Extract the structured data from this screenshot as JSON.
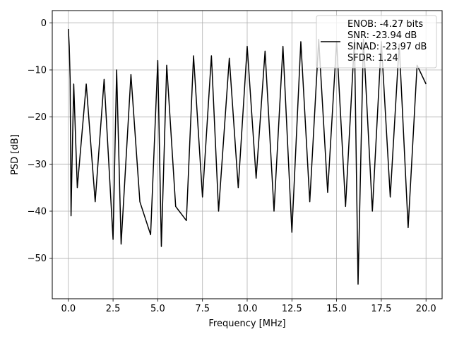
{
  "chart_data": {
    "type": "line",
    "title": "",
    "xlabel": "Frequency [MHz]",
    "ylabel": "PSD [dB]",
    "xlim": [
      -0.9,
      20.9
    ],
    "ylim": [
      -58.6,
      2.6
    ],
    "xticks": [
      0.0,
      2.5,
      5.0,
      7.5,
      10.0,
      12.5,
      15.0,
      17.5,
      20.0
    ],
    "xtick_labels": [
      "0.0",
      "2.5",
      "5.0",
      "7.5",
      "10.0",
      "12.5",
      "15.0",
      "17.5",
      "20.0"
    ],
    "yticks": [
      0,
      -10,
      -20,
      -30,
      -40,
      -50
    ],
    "ytick_labels": [
      "0",
      "−10",
      "−20",
      "−30",
      "−40",
      "−50"
    ],
    "grid": true,
    "legend_placement": "top-right",
    "series": [
      {
        "color": "#000000",
        "x": [
          0.0,
          0.05,
          0.1,
          0.15,
          0.2,
          0.3,
          0.5,
          1.0,
          1.5,
          2.0,
          2.5,
          2.7,
          2.95,
          3.5,
          4.0,
          4.6,
          5.0,
          5.2,
          5.5,
          6.0,
          6.6,
          7.0,
          7.5,
          8.0,
          8.4,
          9.0,
          9.5,
          10.0,
          10.5,
          11.0,
          11.5,
          12.0,
          12.5,
          13.0,
          13.5,
          14.0,
          14.5,
          15.0,
          15.5,
          16.0,
          16.2,
          16.5,
          17.0,
          17.5,
          18.0,
          18.5,
          19.0,
          19.5,
          20.0
        ],
        "y": [
          -1.3,
          -5.0,
          -12.0,
          -41.0,
          -31.0,
          -13.0,
          -35.0,
          -13.0,
          -38.0,
          -12.0,
          -46.0,
          -10.0,
          -47.0,
          -11.0,
          -38.0,
          -45.0,
          -8.0,
          -47.5,
          -9.0,
          -39.0,
          -42.0,
          -7.0,
          -37.0,
          -7.0,
          -40.0,
          -7.5,
          -35.0,
          -5.0,
          -33.0,
          -6.0,
          -40.0,
          -5.0,
          -44.5,
          -4.0,
          -38.0,
          -3.5,
          -36.0,
          -4.0,
          -39.0,
          -3.5,
          -55.5,
          -3.5,
          -40.0,
          -4.0,
          -37.0,
          -4.5,
          -43.5,
          -9.0,
          -13.0
        ]
      }
    ],
    "legend": {
      "lines": [
        "ENOB: -4.27 bits",
        "SNR: -23.94 dB",
        "SINAD: -23.97 dB",
        "SFDR: 1.24"
      ],
      "line_color": "#000000"
    }
  }
}
